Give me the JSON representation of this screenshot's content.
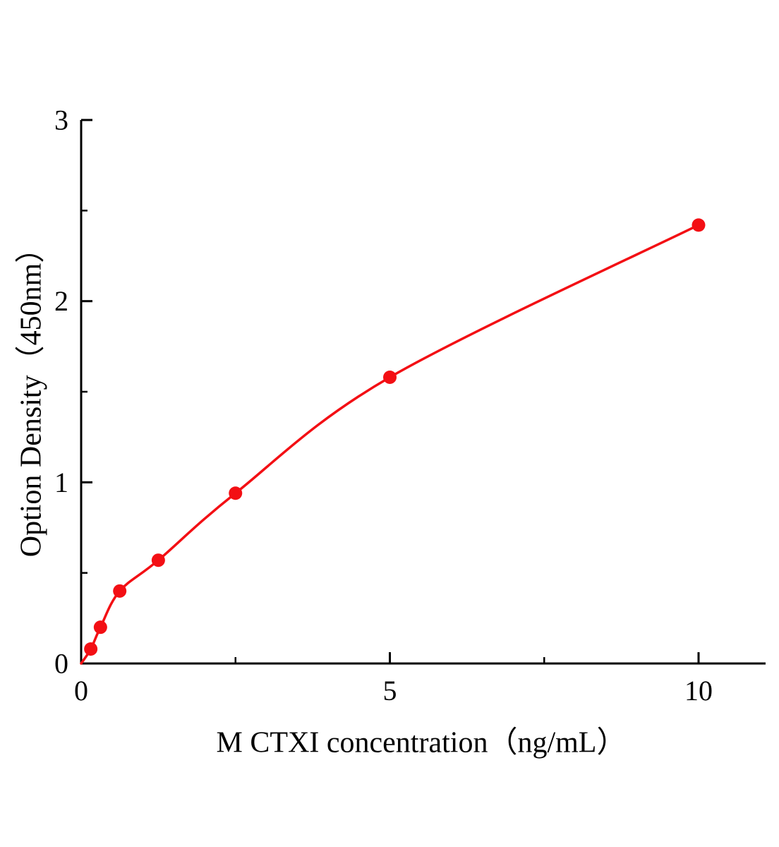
{
  "chart_data": {
    "type": "scatter",
    "title": "",
    "xlabel": "M CTXI concentration（ng/mL）",
    "ylabel": "Option Density（450nm）",
    "xlim": [
      0,
      10
    ],
    "ylim": [
      0,
      3
    ],
    "grid": false,
    "legend": "none",
    "axis_color": "#000000",
    "line_color": "#f30f14",
    "marker_color": "#f30f14",
    "x_ticks": {
      "major": [
        0,
        5,
        10
      ],
      "minor": [
        2.5,
        7.5
      ]
    },
    "y_ticks": {
      "major": [
        0,
        1,
        2,
        3
      ],
      "minor": [
        0.5,
        1.5,
        2.5
      ]
    },
    "curve_start": {
      "x": 0,
      "y": 0
    },
    "points": [
      {
        "x": 0.156,
        "y": 0.08
      },
      {
        "x": 0.3125,
        "y": 0.2
      },
      {
        "x": 0.625,
        "y": 0.4
      },
      {
        "x": 1.25,
        "y": 0.57
      },
      {
        "x": 2.5,
        "y": 0.94
      },
      {
        "x": 5,
        "y": 1.58
      },
      {
        "x": 10,
        "y": 2.42
      }
    ]
  }
}
